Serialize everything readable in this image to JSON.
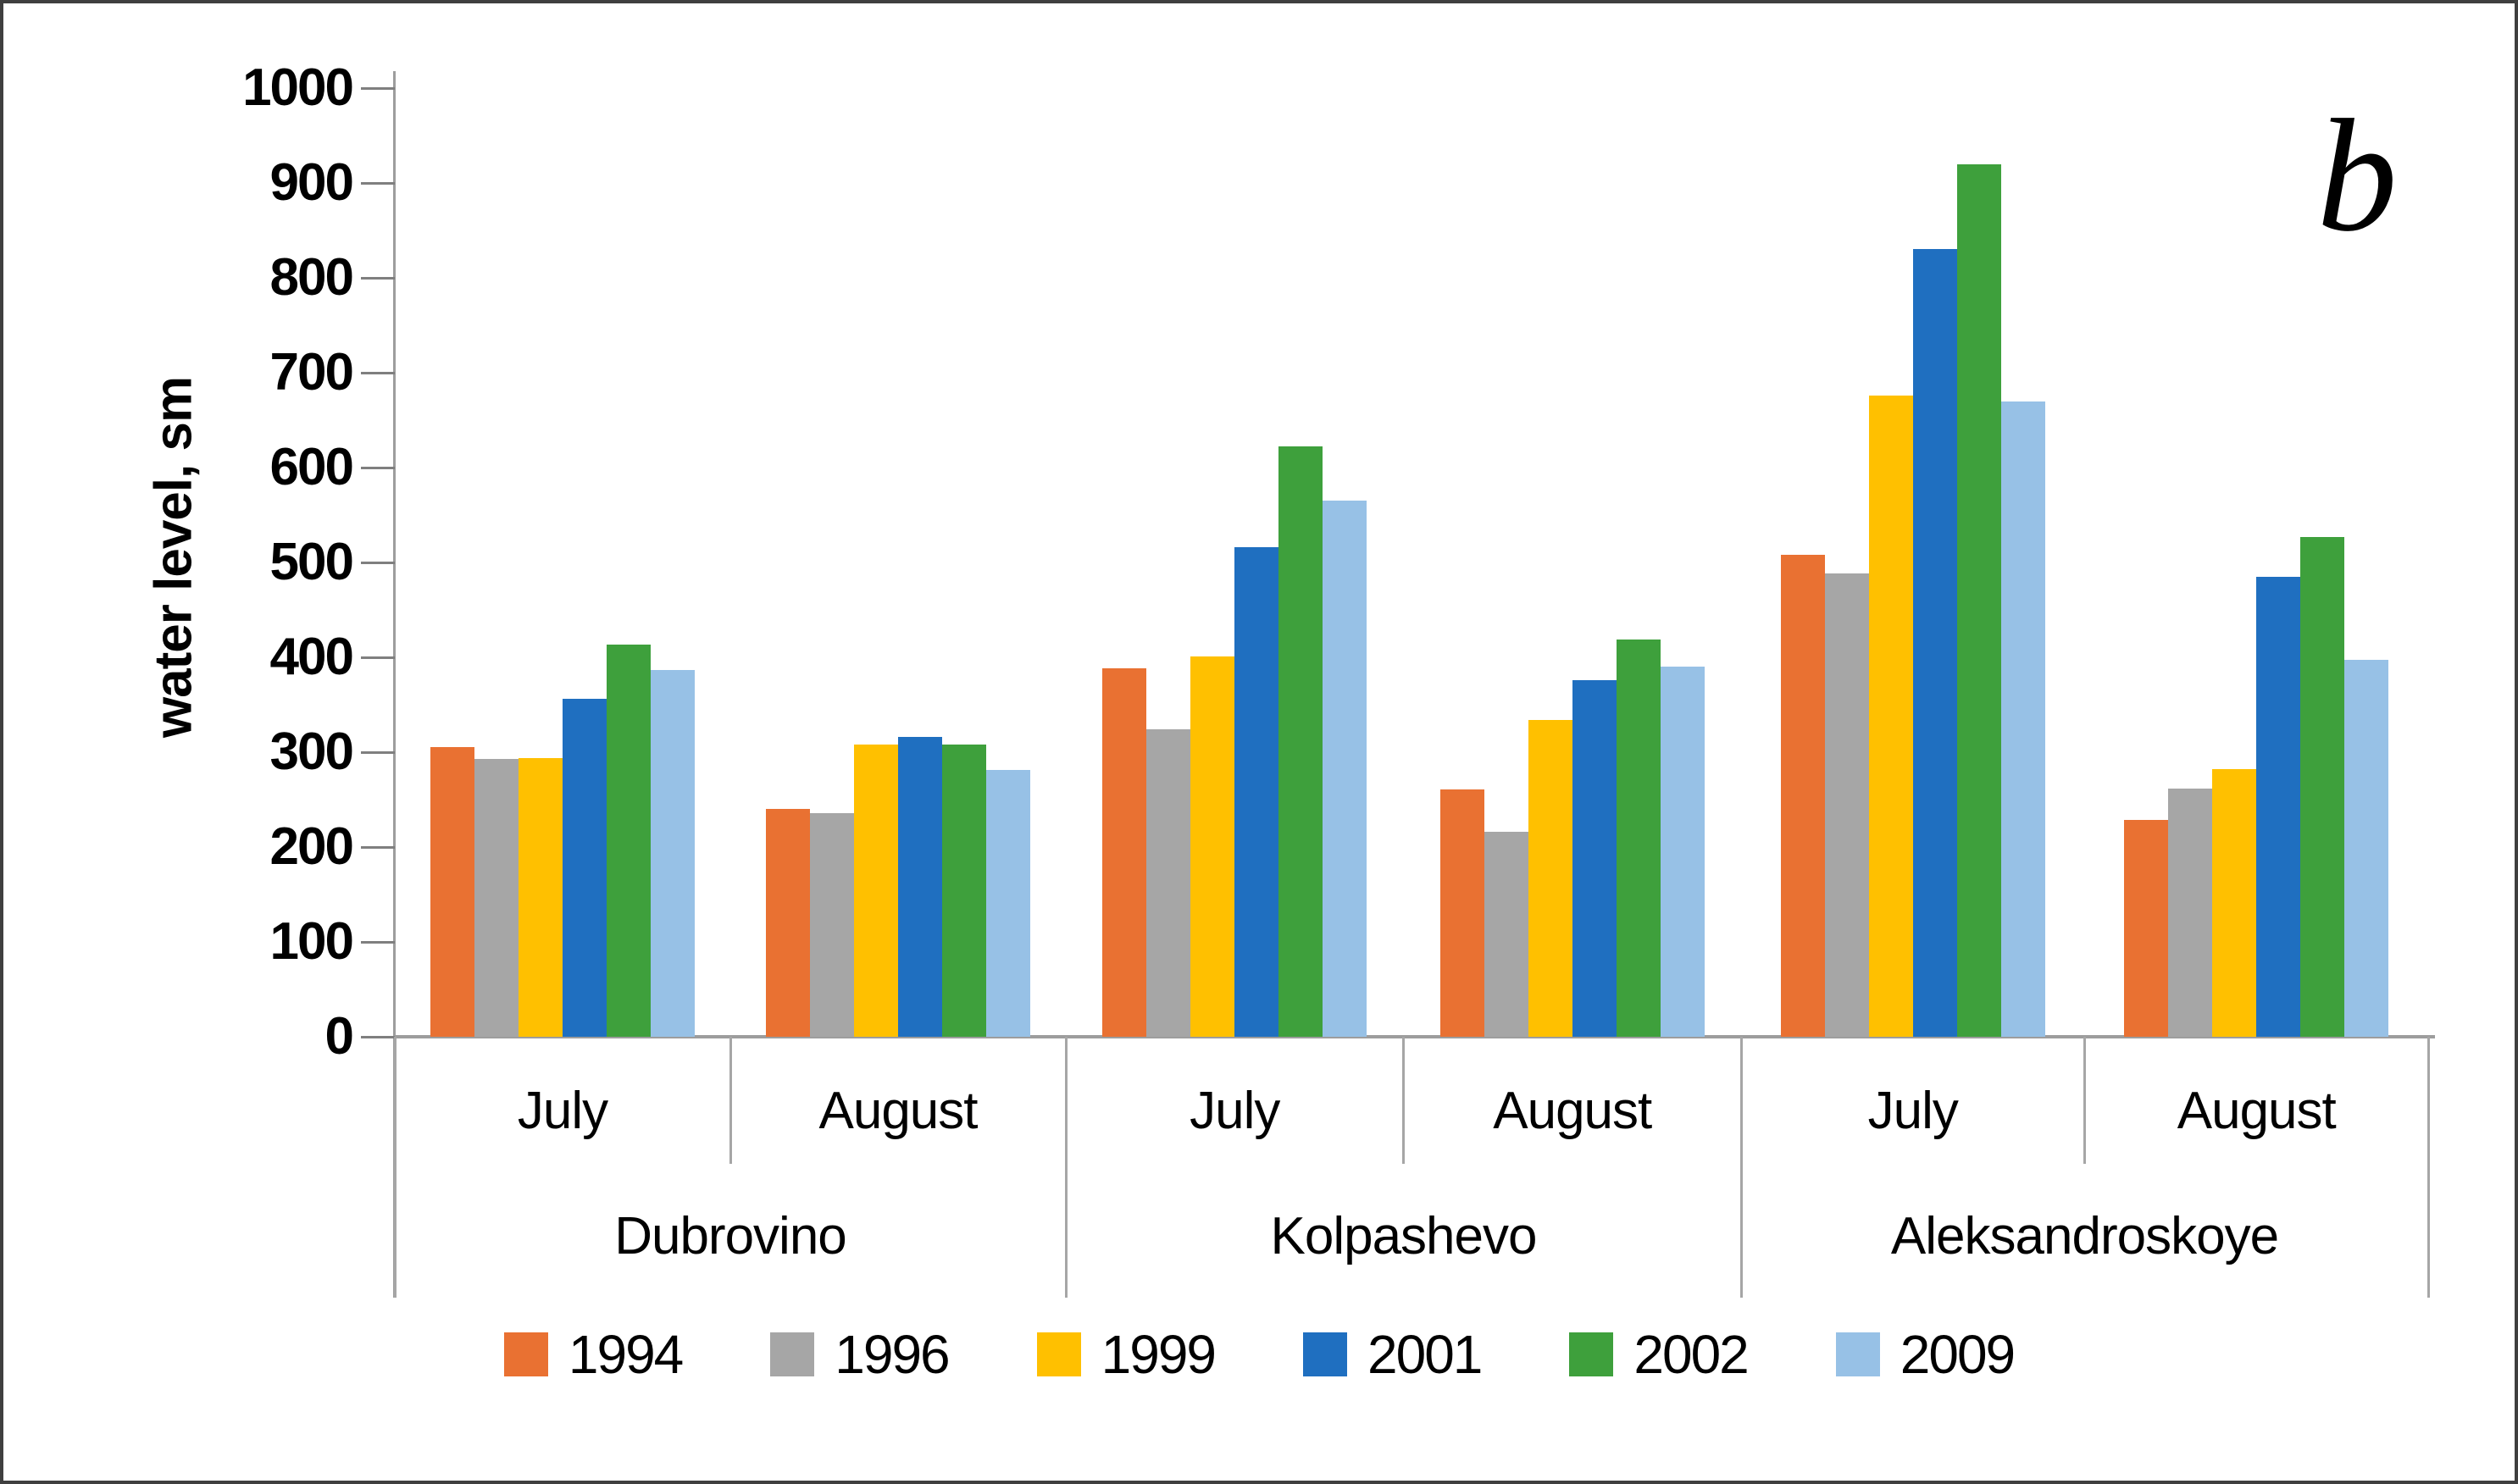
{
  "figure_label": "b",
  "chart_data": {
    "type": "bar",
    "title": "",
    "ylabel": "water level, sm",
    "ylim": [
      0,
      1000
    ],
    "ytick_step": 100,
    "ytick_labels": [
      "0",
      "100",
      "200",
      "300",
      "400",
      "500",
      "600",
      "700",
      "800",
      "900",
      "1000"
    ],
    "grid": false,
    "legend_position": "bottom",
    "series": [
      {
        "name": "1994",
        "color": "#E97132"
      },
      {
        "name": "1996",
        "color": "#A6A6A6"
      },
      {
        "name": "1999",
        "color": "#FFC000"
      },
      {
        "name": "2001",
        "color": "#1F6FC0"
      },
      {
        "name": "2002",
        "color": "#3EA03C"
      },
      {
        "name": "2009",
        "color": "#97C1E6"
      }
    ],
    "stations": [
      {
        "name": "Dubrovino"
      },
      {
        "name": "Kolpashevo"
      },
      {
        "name": "Aleksandroskoye"
      }
    ],
    "groups": [
      {
        "station": "Dubrovino",
        "month": "July",
        "values": [
          305,
          293,
          294,
          356,
          413,
          387
        ]
      },
      {
        "station": "Dubrovino",
        "month": "August",
        "values": [
          240,
          236,
          308,
          316,
          308,
          281
        ]
      },
      {
        "station": "Kolpashevo",
        "month": "July",
        "values": [
          388,
          324,
          401,
          516,
          622,
          565
        ]
      },
      {
        "station": "Kolpashevo",
        "month": "August",
        "values": [
          261,
          216,
          334,
          376,
          419,
          390
        ]
      },
      {
        "station": "Aleksandroskoye",
        "month": "July",
        "values": [
          508,
          488,
          676,
          830,
          920,
          670
        ]
      },
      {
        "station": "Aleksandroskoye",
        "month": "August",
        "values": [
          229,
          262,
          282,
          485,
          527,
          397
        ]
      }
    ]
  }
}
